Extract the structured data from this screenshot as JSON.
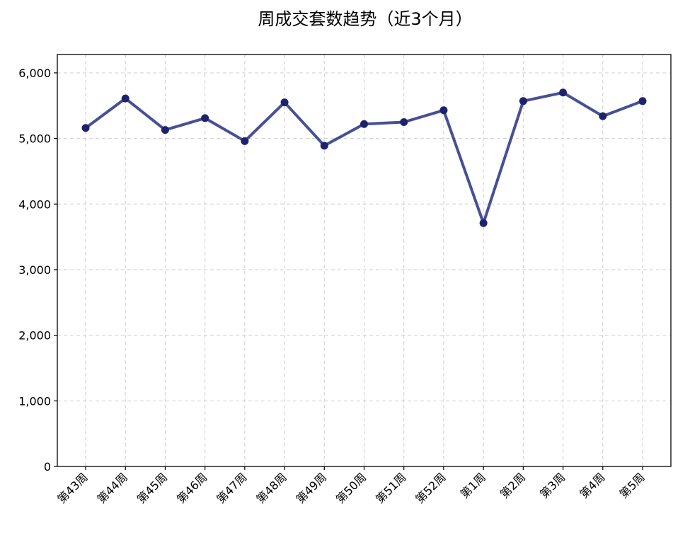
{
  "chart_data": {
    "type": "line",
    "title": "周成交套数趋势（近3个月）",
    "xlabel": "",
    "ylabel": "",
    "categories": [
      "第43周",
      "第44周",
      "第45周",
      "第46周",
      "第47周",
      "第48周",
      "第49周",
      "第50周",
      "第51周",
      "第52周",
      "第1周",
      "第2周",
      "第3周",
      "第4周",
      "第5周"
    ],
    "series": [
      {
        "values": [
          5160,
          5610,
          5130,
          5310,
          4960,
          5550,
          4890,
          5220,
          5250,
          5430,
          3710,
          5570,
          5700,
          5340,
          5570
        ]
      }
    ],
    "ylim": [
      0,
      6280
    ],
    "yticks": [
      0,
      1000,
      2000,
      3000,
      4000,
      5000,
      6000
    ],
    "ytick_labels": [
      "0",
      "1,000",
      "2,000",
      "3,000",
      "4,000",
      "5,000",
      "6,000"
    ],
    "grid": true,
    "legend": "none",
    "line_color": "#2e3787",
    "marker_color": "#1f226b"
  }
}
